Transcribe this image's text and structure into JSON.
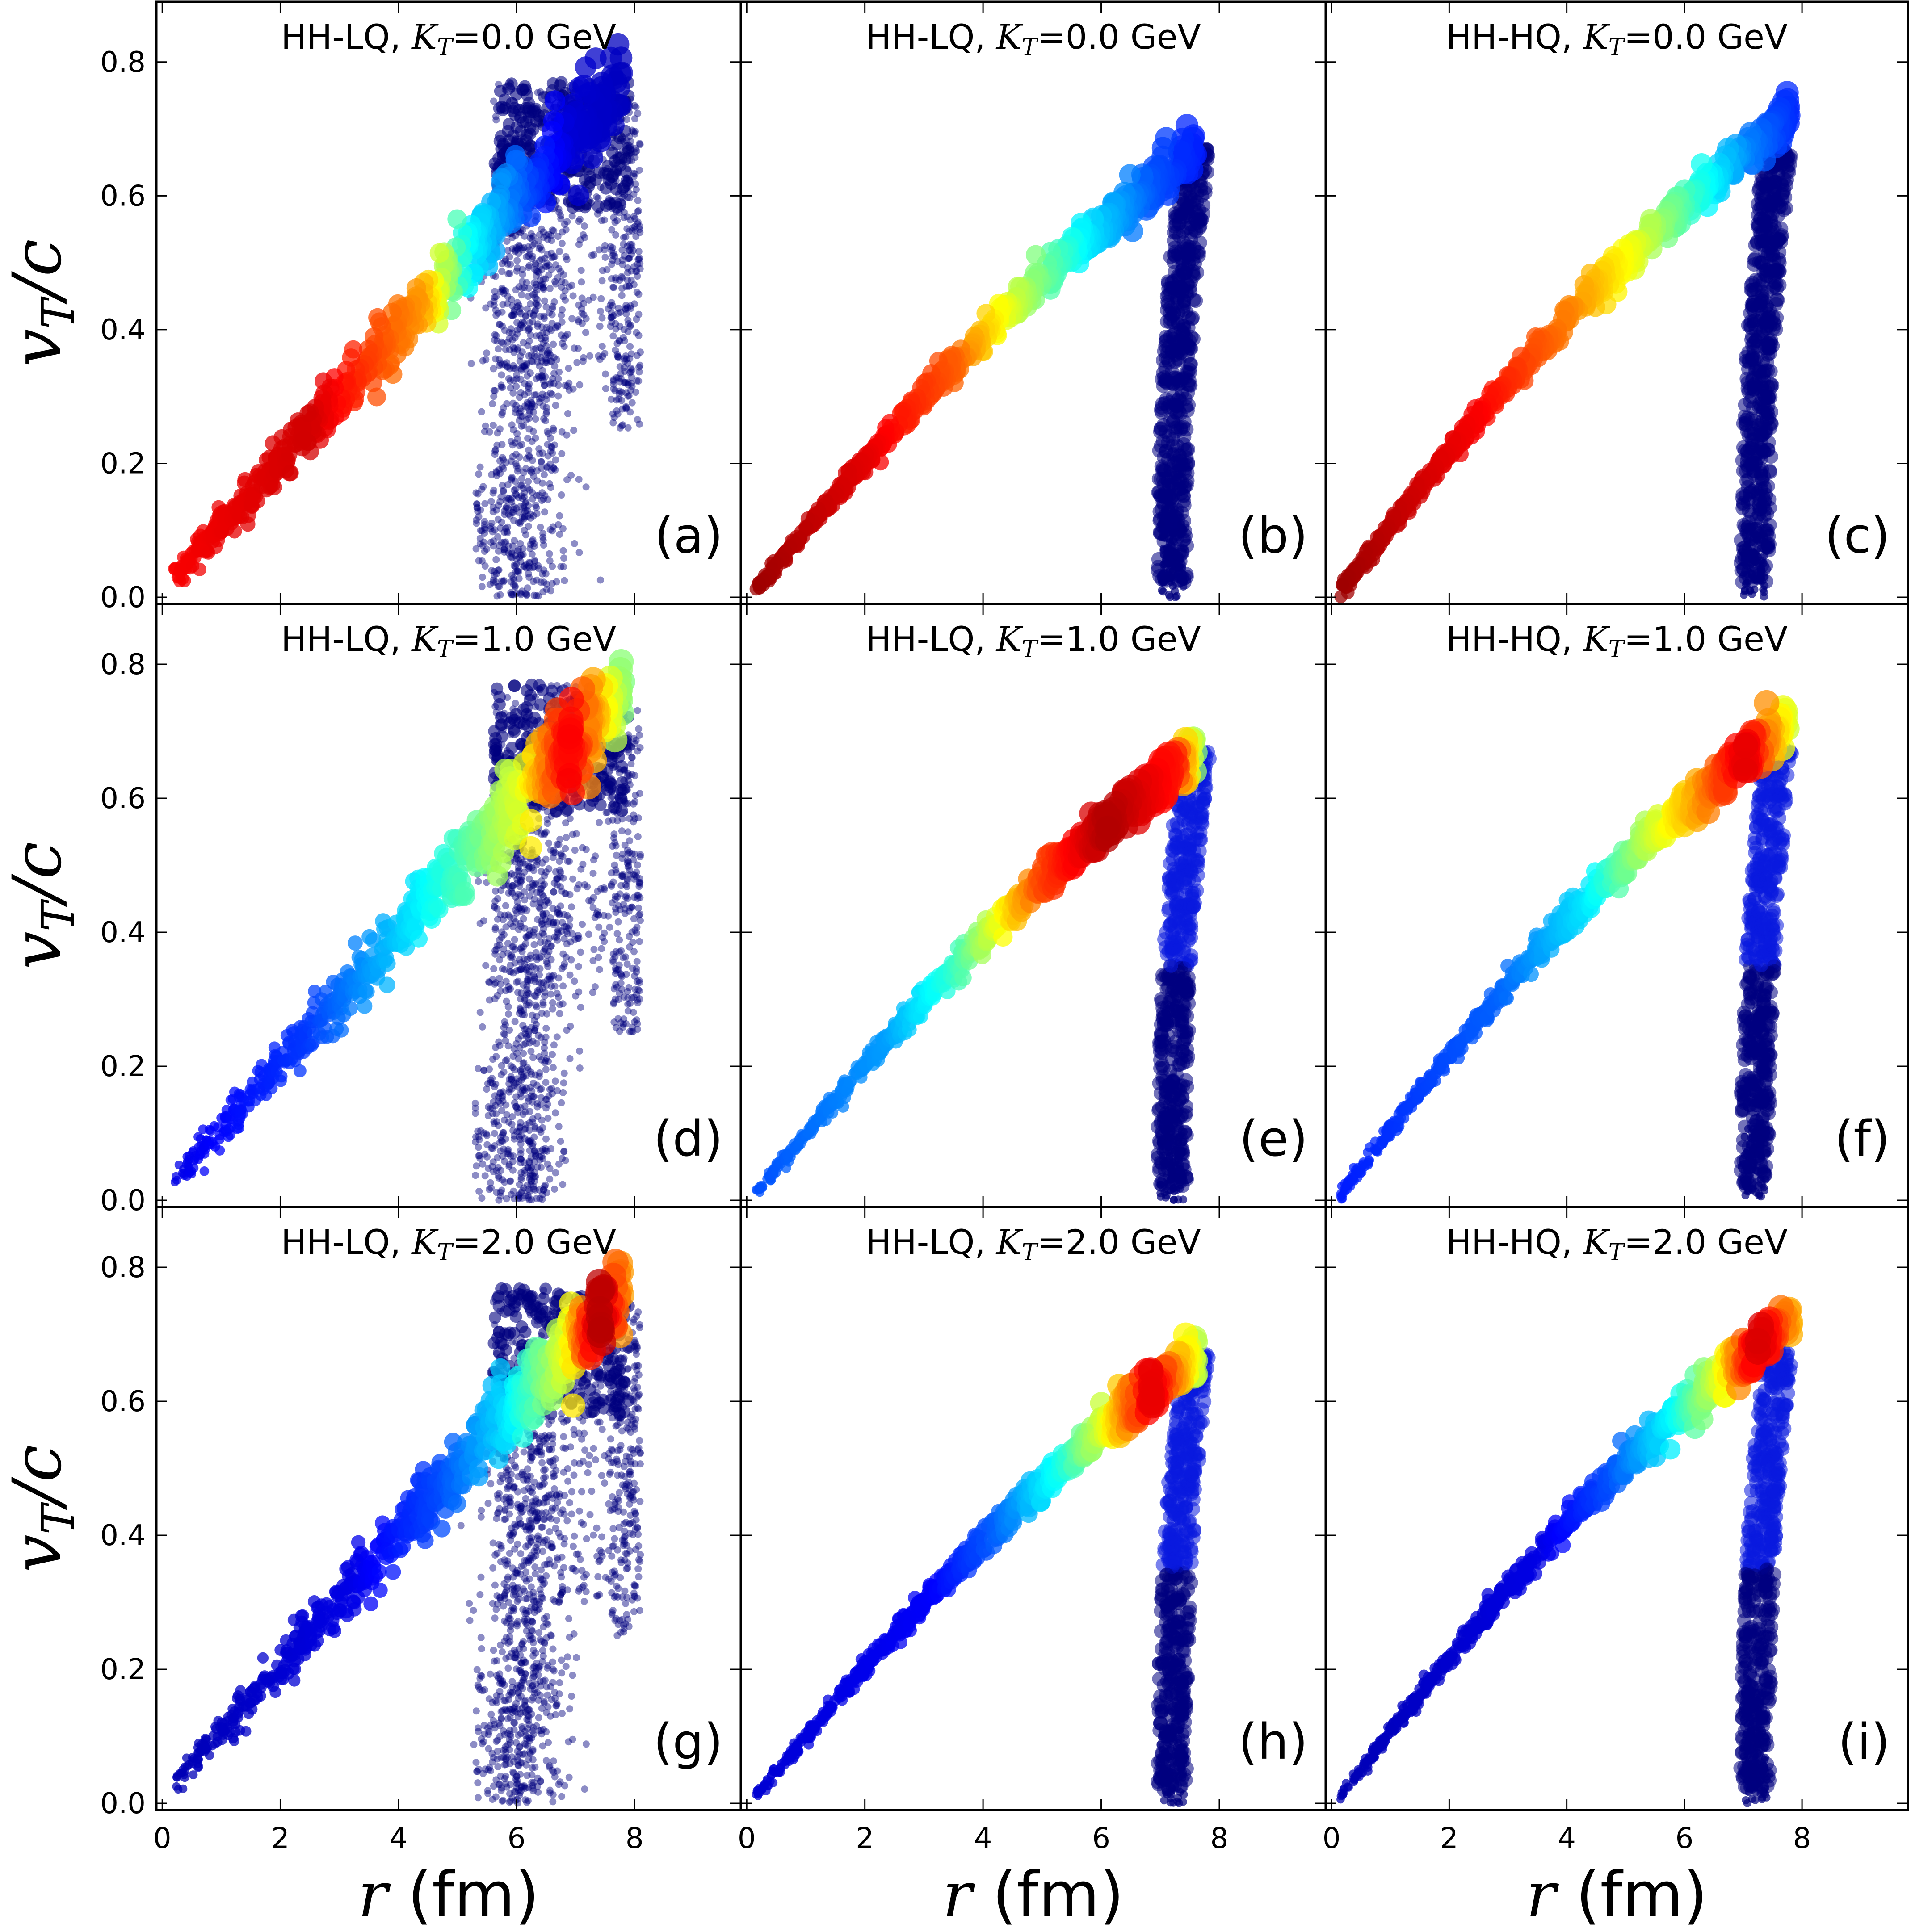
{
  "figure": {
    "x_tick_labels": [
      "0",
      "2",
      "4",
      "6",
      "8"
    ],
    "y_tick_labels": [
      "0.0",
      "0.2",
      "0.4",
      "0.6",
      "0.8"
    ],
    "y_axis_label": {
      "symbol": "v",
      "subscript": "T",
      "rest": "/c"
    },
    "x_axis_label": {
      "symbol": "r",
      "rest": " (fm)"
    }
  },
  "colormap": [
    "#00007f",
    "#0000ff",
    "#007fff",
    "#00ffff",
    "#7fff7f",
    "#ffff00",
    "#ff7f00",
    "#ff0000",
    "#7f0000"
  ],
  "chart_data": [
    {
      "panel": "(a)",
      "type": "scatter",
      "title_prefix": "HH-LQ, ",
      "kt_symbol": "K",
      "kt_subscript": "T",
      "kt_value": "=0.0 GeV",
      "xlabel": "r (fm)",
      "ylabel": "v_T/c",
      "xlim": [
        -0.1,
        9.8
      ],
      "ylim": [
        -0.01,
        0.89
      ],
      "line": {
        "r_start": 0.2,
        "r_end": 7.8,
        "v_start": 0.03,
        "v_end": 0.77,
        "curvature": 0.0,
        "fan": 0.025
      },
      "edge": {
        "present": false,
        "r_top": 7.8,
        "r_bottom": 7.2,
        "v_top": 0.67,
        "v_bottom": 0.02
      },
      "cloud": {
        "present": true,
        "r_min": 5.3,
        "r_max": 8.1,
        "v_min": 0.0,
        "v_max": 0.77
      },
      "color_profile": [
        [
          0.0,
          0.88
        ],
        [
          0.3,
          0.92
        ],
        [
          0.55,
          0.72
        ],
        [
          0.65,
          0.38
        ],
        [
          0.78,
          0.2
        ],
        [
          0.88,
          0.08
        ],
        [
          1.0,
          0.06
        ]
      ]
    },
    {
      "panel": "(b)",
      "type": "scatter",
      "title_prefix": "HH-LQ, ",
      "kt_symbol": "K",
      "kt_subscript": "T",
      "kt_value": "=0.0 GeV",
      "xlabel": "r (fm)",
      "ylabel": "v_T/c",
      "xlim": [
        -0.1,
        9.8
      ],
      "ylim": [
        -0.01,
        0.89
      ],
      "line": {
        "r_start": 0.15,
        "r_end": 7.6,
        "v_start": 0.01,
        "v_end": 0.67,
        "curvature": 0.04,
        "fan": 0.012
      },
      "edge": {
        "present": true,
        "r_top": 7.6,
        "r_bottom": 7.2,
        "v_top": 0.67,
        "v_bottom": 0.02
      },
      "cloud": {
        "present": false,
        "r_min": 5.3,
        "r_max": 8.1,
        "v_min": 0.0,
        "v_max": 0.77
      },
      "color_profile": [
        [
          0.0,
          0.97
        ],
        [
          0.25,
          0.9
        ],
        [
          0.45,
          0.78
        ],
        [
          0.6,
          0.55
        ],
        [
          0.75,
          0.35
        ],
        [
          0.9,
          0.2
        ],
        [
          1.0,
          0.15
        ]
      ]
    },
    {
      "panel": "(c)",
      "type": "scatter",
      "title_prefix": "HH-HQ, ",
      "kt_symbol": "K",
      "kt_subscript": "T",
      "kt_value": "=0.0 GeV",
      "xlabel": "r (fm)",
      "ylabel": "v_T/c",
      "xlim": [
        -0.1,
        9.8
      ],
      "ylim": [
        -0.01,
        0.89
      ],
      "line": {
        "r_start": 0.15,
        "r_end": 7.8,
        "v_start": 0.01,
        "v_end": 0.72,
        "curvature": 0.05,
        "fan": 0.012
      },
      "edge": {
        "present": true,
        "r_top": 7.6,
        "r_bottom": 7.2,
        "v_top": 0.68,
        "v_bottom": 0.02
      },
      "cloud": {
        "present": false,
        "r_min": 5.3,
        "r_max": 8.1,
        "v_min": 0.0,
        "v_max": 0.77
      },
      "color_profile": [
        [
          0.0,
          0.97
        ],
        [
          0.3,
          0.88
        ],
        [
          0.5,
          0.75
        ],
        [
          0.65,
          0.6
        ],
        [
          0.78,
          0.42
        ],
        [
          0.9,
          0.25
        ],
        [
          1.0,
          0.16
        ]
      ]
    },
    {
      "panel": "(d)",
      "type": "scatter",
      "title_prefix": "HH-LQ, ",
      "kt_symbol": "K",
      "kt_subscript": "T",
      "kt_value": "=1.0 GeV",
      "xlabel": "r (fm)",
      "ylabel": "v_T/c",
      "xlim": [
        -0.1,
        9.8
      ],
      "ylim": [
        -0.01,
        0.89
      ],
      "line": {
        "r_start": 0.2,
        "r_end": 7.8,
        "v_start": 0.03,
        "v_end": 0.77,
        "curvature": 0.0,
        "fan": 0.025
      },
      "edge": {
        "present": false,
        "r_top": 7.8,
        "r_bottom": 7.2,
        "v_top": 0.67,
        "v_bottom": 0.02
      },
      "cloud": {
        "present": true,
        "r_min": 5.3,
        "r_max": 8.1,
        "v_min": 0.0,
        "v_max": 0.77
      },
      "color_profile": [
        [
          0.0,
          0.1
        ],
        [
          0.3,
          0.18
        ],
        [
          0.5,
          0.32
        ],
        [
          0.65,
          0.45
        ],
        [
          0.78,
          0.6
        ],
        [
          0.88,
          0.88
        ],
        [
          1.0,
          0.5
        ]
      ]
    },
    {
      "panel": "(e)",
      "type": "scatter",
      "title_prefix": "HH-LQ, ",
      "kt_symbol": "K",
      "kt_subscript": "T",
      "kt_value": "=1.0 GeV",
      "xlabel": "r (fm)",
      "ylabel": "v_T/c",
      "xlim": [
        -0.1,
        9.8
      ],
      "ylim": [
        -0.01,
        0.89
      ],
      "line": {
        "r_start": 0.15,
        "r_end": 7.6,
        "v_start": 0.01,
        "v_end": 0.67,
        "curvature": 0.04,
        "fan": 0.012
      },
      "edge": {
        "present": true,
        "r_top": 7.6,
        "r_bottom": 7.2,
        "v_top": 0.67,
        "v_bottom": 0.02
      },
      "cloud": {
        "present": false,
        "r_min": 5.3,
        "r_max": 8.1,
        "v_min": 0.0,
        "v_max": 0.77
      },
      "color_profile": [
        [
          0.0,
          0.2
        ],
        [
          0.3,
          0.28
        ],
        [
          0.45,
          0.42
        ],
        [
          0.55,
          0.6
        ],
        [
          0.65,
          0.8
        ],
        [
          0.8,
          0.95
        ],
        [
          0.95,
          0.85
        ],
        [
          1.0,
          0.5
        ]
      ]
    },
    {
      "panel": "(f)",
      "type": "scatter",
      "title_prefix": "HH-HQ, ",
      "kt_symbol": "K",
      "kt_subscript": "T",
      "kt_value": "=1.0 GeV",
      "xlabel": "r (fm)",
      "ylabel": "v_T/c",
      "xlim": [
        -0.1,
        9.8
      ],
      "ylim": [
        -0.01,
        0.89
      ],
      "line": {
        "r_start": 0.15,
        "r_end": 7.8,
        "v_start": 0.01,
        "v_end": 0.72,
        "curvature": 0.05,
        "fan": 0.012
      },
      "edge": {
        "present": true,
        "r_top": 7.6,
        "r_bottom": 7.2,
        "v_top": 0.68,
        "v_bottom": 0.02
      },
      "cloud": {
        "present": false,
        "r_min": 5.3,
        "r_max": 8.1,
        "v_min": 0.0,
        "v_max": 0.77
      },
      "color_profile": [
        [
          0.0,
          0.15
        ],
        [
          0.35,
          0.22
        ],
        [
          0.55,
          0.35
        ],
        [
          0.68,
          0.55
        ],
        [
          0.8,
          0.72
        ],
        [
          0.9,
          0.9
        ],
        [
          1.0,
          0.55
        ]
      ]
    },
    {
      "panel": "(g)",
      "type": "scatter",
      "title_prefix": "HH-LQ, ",
      "kt_symbol": "K",
      "kt_subscript": "T",
      "kt_value": "=2.0 GeV",
      "xlabel": "r (fm)",
      "ylabel": "v_T/c",
      "xlim": [
        -0.1,
        9.8
      ],
      "ylim": [
        -0.01,
        0.89
      ],
      "line": {
        "r_start": 0.2,
        "r_end": 7.8,
        "v_start": 0.03,
        "v_end": 0.77,
        "curvature": 0.0,
        "fan": 0.025
      },
      "edge": {
        "present": false,
        "r_top": 7.8,
        "r_bottom": 7.2,
        "v_top": 0.67,
        "v_bottom": 0.02
      },
      "cloud": {
        "present": true,
        "r_min": 5.3,
        "r_max": 8.1,
        "v_min": 0.0,
        "v_max": 0.77
      },
      "color_profile": [
        [
          0.0,
          0.05
        ],
        [
          0.4,
          0.1
        ],
        [
          0.6,
          0.2
        ],
        [
          0.75,
          0.35
        ],
        [
          0.88,
          0.6
        ],
        [
          0.95,
          0.95
        ],
        [
          1.0,
          0.7
        ]
      ]
    },
    {
      "panel": "(h)",
      "type": "scatter",
      "title_prefix": "HH-LQ, ",
      "kt_symbol": "K",
      "kt_subscript": "T",
      "kt_value": "=2.0 GeV",
      "xlabel": "r (fm)",
      "ylabel": "v_T/c",
      "xlim": [
        -0.1,
        9.8
      ],
      "ylim": [
        -0.01,
        0.89
      ],
      "line": {
        "r_start": 0.15,
        "r_end": 7.6,
        "v_start": 0.01,
        "v_end": 0.67,
        "curvature": 0.04,
        "fan": 0.012
      },
      "edge": {
        "present": true,
        "r_top": 7.6,
        "r_bottom": 7.2,
        "v_top": 0.67,
        "v_bottom": 0.02
      },
      "cloud": {
        "present": false,
        "r_min": 5.3,
        "r_max": 8.1,
        "v_min": 0.0,
        "v_max": 0.77
      },
      "color_profile": [
        [
          0.0,
          0.08
        ],
        [
          0.4,
          0.12
        ],
        [
          0.55,
          0.22
        ],
        [
          0.7,
          0.4
        ],
        [
          0.8,
          0.6
        ],
        [
          0.9,
          0.9
        ],
        [
          1.0,
          0.55
        ]
      ]
    },
    {
      "panel": "(i)",
      "type": "scatter",
      "title_prefix": "HH-HQ, ",
      "kt_symbol": "K",
      "kt_subscript": "T",
      "kt_value": "=2.0 GeV",
      "xlabel": "r (fm)",
      "ylabel": "v_T/c",
      "xlim": [
        -0.1,
        9.8
      ],
      "ylim": [
        -0.01,
        0.89
      ],
      "line": {
        "r_start": 0.15,
        "r_end": 7.8,
        "v_start": 0.01,
        "v_end": 0.72,
        "curvature": 0.05,
        "fan": 0.012
      },
      "edge": {
        "present": true,
        "r_top": 7.6,
        "r_bottom": 7.2,
        "v_top": 0.68,
        "v_bottom": 0.02
      },
      "cloud": {
        "present": false,
        "r_min": 5.3,
        "r_max": 8.1,
        "v_min": 0.0,
        "v_max": 0.77
      },
      "color_profile": [
        [
          0.0,
          0.05
        ],
        [
          0.45,
          0.1
        ],
        [
          0.6,
          0.2
        ],
        [
          0.75,
          0.38
        ],
        [
          0.85,
          0.6
        ],
        [
          0.93,
          0.92
        ],
        [
          1.0,
          0.7
        ]
      ]
    }
  ]
}
